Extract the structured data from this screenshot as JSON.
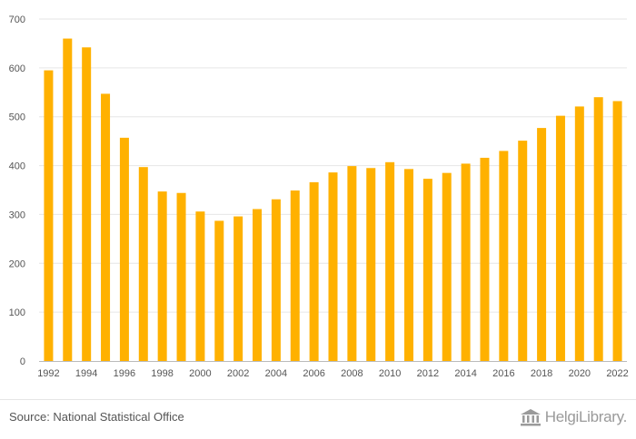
{
  "chart_data": {
    "type": "bar",
    "categories": [
      "1992",
      "1993",
      "1994",
      "1995",
      "1996",
      "1997",
      "1998",
      "1999",
      "2000",
      "2001",
      "2002",
      "2003",
      "2004",
      "2005",
      "2006",
      "2007",
      "2008",
      "2009",
      "2010",
      "2011",
      "2012",
      "2013",
      "2014",
      "2015",
      "2016",
      "2017",
      "2018",
      "2019",
      "2020",
      "2021",
      "2022"
    ],
    "x_tick_labels": [
      "1992",
      "1994",
      "1996",
      "1998",
      "2000",
      "2002",
      "2004",
      "2006",
      "2008",
      "2010",
      "2012",
      "2014",
      "2016",
      "2018",
      "2020",
      "2022"
    ],
    "values": [
      595,
      660,
      642,
      547,
      457,
      397,
      347,
      344,
      306,
      287,
      296,
      311,
      331,
      349,
      366,
      386,
      399,
      395,
      407,
      393,
      373,
      385,
      404,
      416,
      430,
      451,
      477,
      502,
      521,
      540,
      532
    ],
    "ylim": [
      0,
      700
    ],
    "y_ticks": [
      0,
      100,
      200,
      300,
      400,
      500,
      600,
      700
    ],
    "grid": true,
    "bar_color": "#ffb100",
    "grid_color": "#e6e6e6"
  },
  "footer": {
    "source": "Source: National Statistical Office",
    "brand": "HelgiLibrary."
  }
}
